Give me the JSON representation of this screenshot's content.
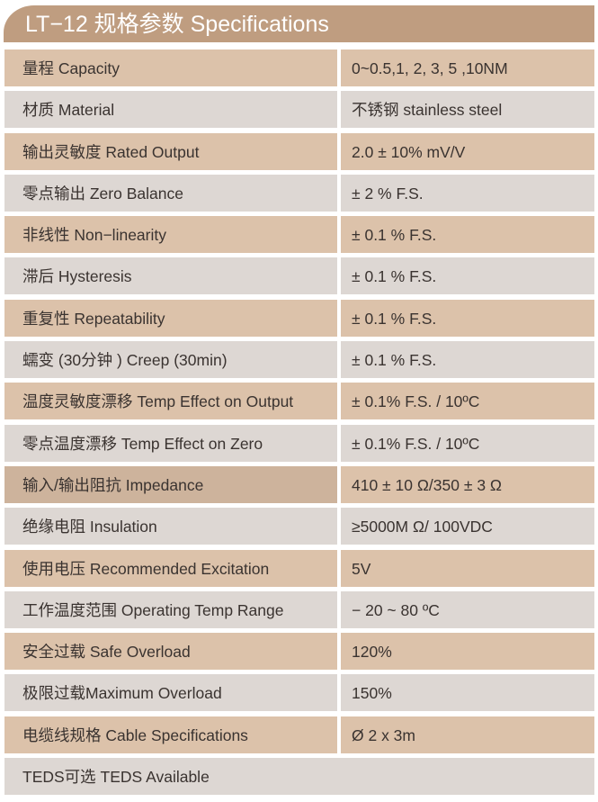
{
  "title": "LT−12 规格参数 Specifications",
  "colors": {
    "header": "#bf9d80",
    "row_tan": "#dcc2aa",
    "row_gray": "#ddd7d3",
    "highlight": "#cdb39c"
  },
  "rows": [
    {
      "label": "量程 Capacity",
      "value": "0~0.5,1, 2, 3, 5 ,10NM"
    },
    {
      "label": "材质 Material",
      "value": "不锈钢 stainless steel"
    },
    {
      "label": "输出灵敏度 Rated Output",
      "value": "2.0 ± 10% mV/V"
    },
    {
      "label": "零点输出  Zero Balance",
      "value": " ± 2 % F.S."
    },
    {
      "label": "非线性 Non−linearity",
      "value": " ± 0.1 % F.S."
    },
    {
      "label": "滞后 Hysteresis",
      "value": " ± 0.1 % F.S."
    },
    {
      "label": "重复性 Repeatability",
      "value": " ± 0.1 % F.S."
    },
    {
      "label": "蠕变 (30分钟 ) Creep (30min)",
      "value": " ± 0.1 % F.S."
    },
    {
      "label": "温度灵敏度漂移 Temp Effect on Output",
      "value": " ± 0.1% F.S. / 10ºC"
    },
    {
      "label": "零点温度漂移 Temp Effect on Zero",
      "value": " ± 0.1% F.S. / 10ºC"
    },
    {
      "label": "输入/输出阻抗 Impedance",
      "value": "410 ± 10 Ω/350 ± 3 Ω"
    },
    {
      "label": "绝缘电阻  Insulation",
      "value": "≥5000M Ω/ 100VDC"
    },
    {
      "label": "使用电压 Recommended Excitation",
      "value": "5V"
    },
    {
      "label": "工作温度范围 Operating Temp  Range",
      "value": "− 20 ~ 80 ºC"
    },
    {
      "label": "安全过载 Safe Overload",
      "value": "120%"
    },
    {
      "label": "极限过载Maximum Overload",
      "value": "150%"
    },
    {
      "label": "电缆线规格 Cable Specifications",
      "value": "Ø 2 x 3m"
    },
    {
      "label": "TEDS可选 TEDS Available"
    }
  ]
}
